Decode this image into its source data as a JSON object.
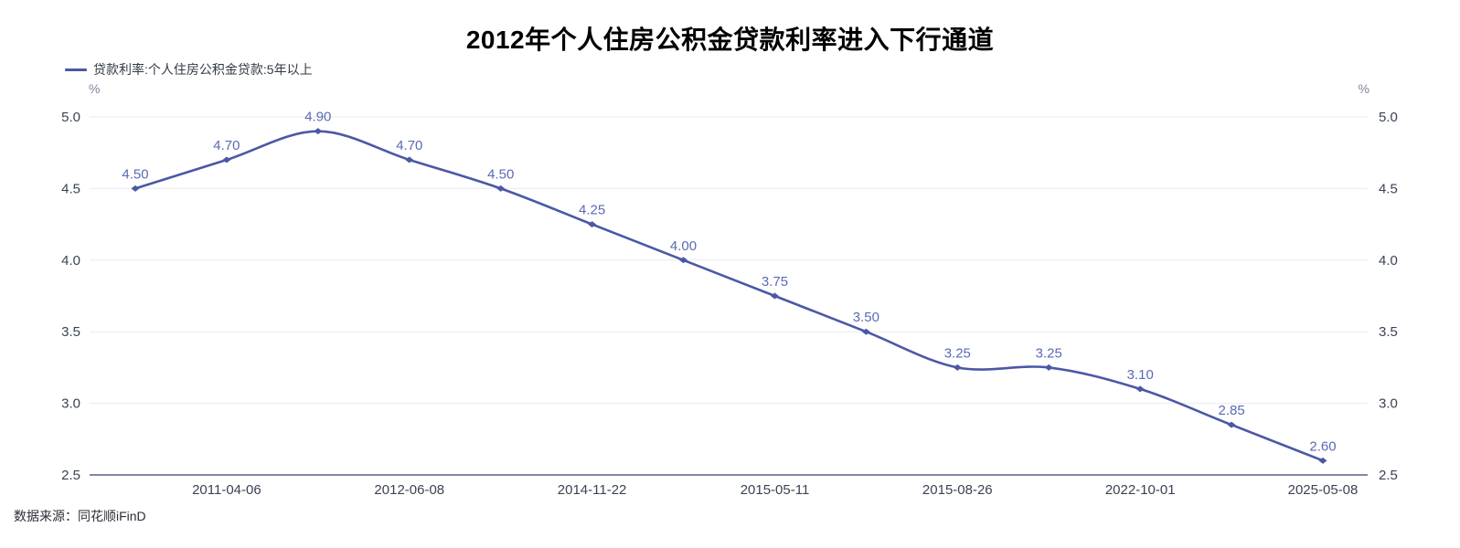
{
  "title": "2012年个人住房公积金贷款利率进入下行通道",
  "legend": {
    "items": [
      {
        "label": "贷款利率:个人住房公积金贷款:5年以上",
        "color": "#4B58A5"
      }
    ]
  },
  "axes": {
    "left_unit": "%",
    "right_unit": "%",
    "y_tick_labels": [
      "5.0",
      "4.5",
      "4.0",
      "3.5",
      "3.0",
      "2.5"
    ],
    "x_tick_labels": [
      "2011-04-06",
      "2012-06-08",
      "2014-11-22",
      "2015-05-11",
      "2015-08-26",
      "2022-10-01",
      "2025-05-08"
    ]
  },
  "footer": {
    "source": "数据来源：同花顺iFinD"
  },
  "chart_data": {
    "type": "line",
    "title": "2012年个人住房公积金贷款利率进入下行通道",
    "unit": "%",
    "smooth": true,
    "grid": true,
    "legend_position": "top-left",
    "ylim": [
      2.5,
      5.0
    ],
    "y_ticks": [
      5.0,
      4.5,
      4.0,
      3.5,
      3.0,
      2.5
    ],
    "x_tick_labels": [
      "2011-04-06",
      "2012-06-08",
      "2014-11-22",
      "2015-05-11",
      "2015-08-26",
      "2022-10-01",
      "2025-05-08"
    ],
    "x_tick_point_indices": [
      1,
      3,
      5,
      7,
      9,
      11,
      13
    ],
    "series": [
      {
        "name": "贷款利率:个人住房公积金贷款:5年以上",
        "values": [
          4.5,
          4.7,
          4.9,
          4.7,
          4.5,
          4.25,
          4.0,
          3.75,
          3.5,
          3.25,
          3.25,
          3.1,
          2.85,
          2.6
        ],
        "point_labels": [
          "4.50",
          "4.70",
          "4.90",
          "4.70",
          "4.50",
          "4.25",
          "4.00",
          "3.75",
          "3.50",
          "3.25",
          "3.25",
          "3.10",
          "2.85",
          "2.60"
        ],
        "color": "#4B58A5"
      }
    ],
    "colors": {
      "line": "#4B58A5",
      "point_label": "#5A6AB5",
      "grid": "#EAEAF2",
      "axis_line": "#575F8A",
      "axis_text": "#3A4254"
    }
  }
}
